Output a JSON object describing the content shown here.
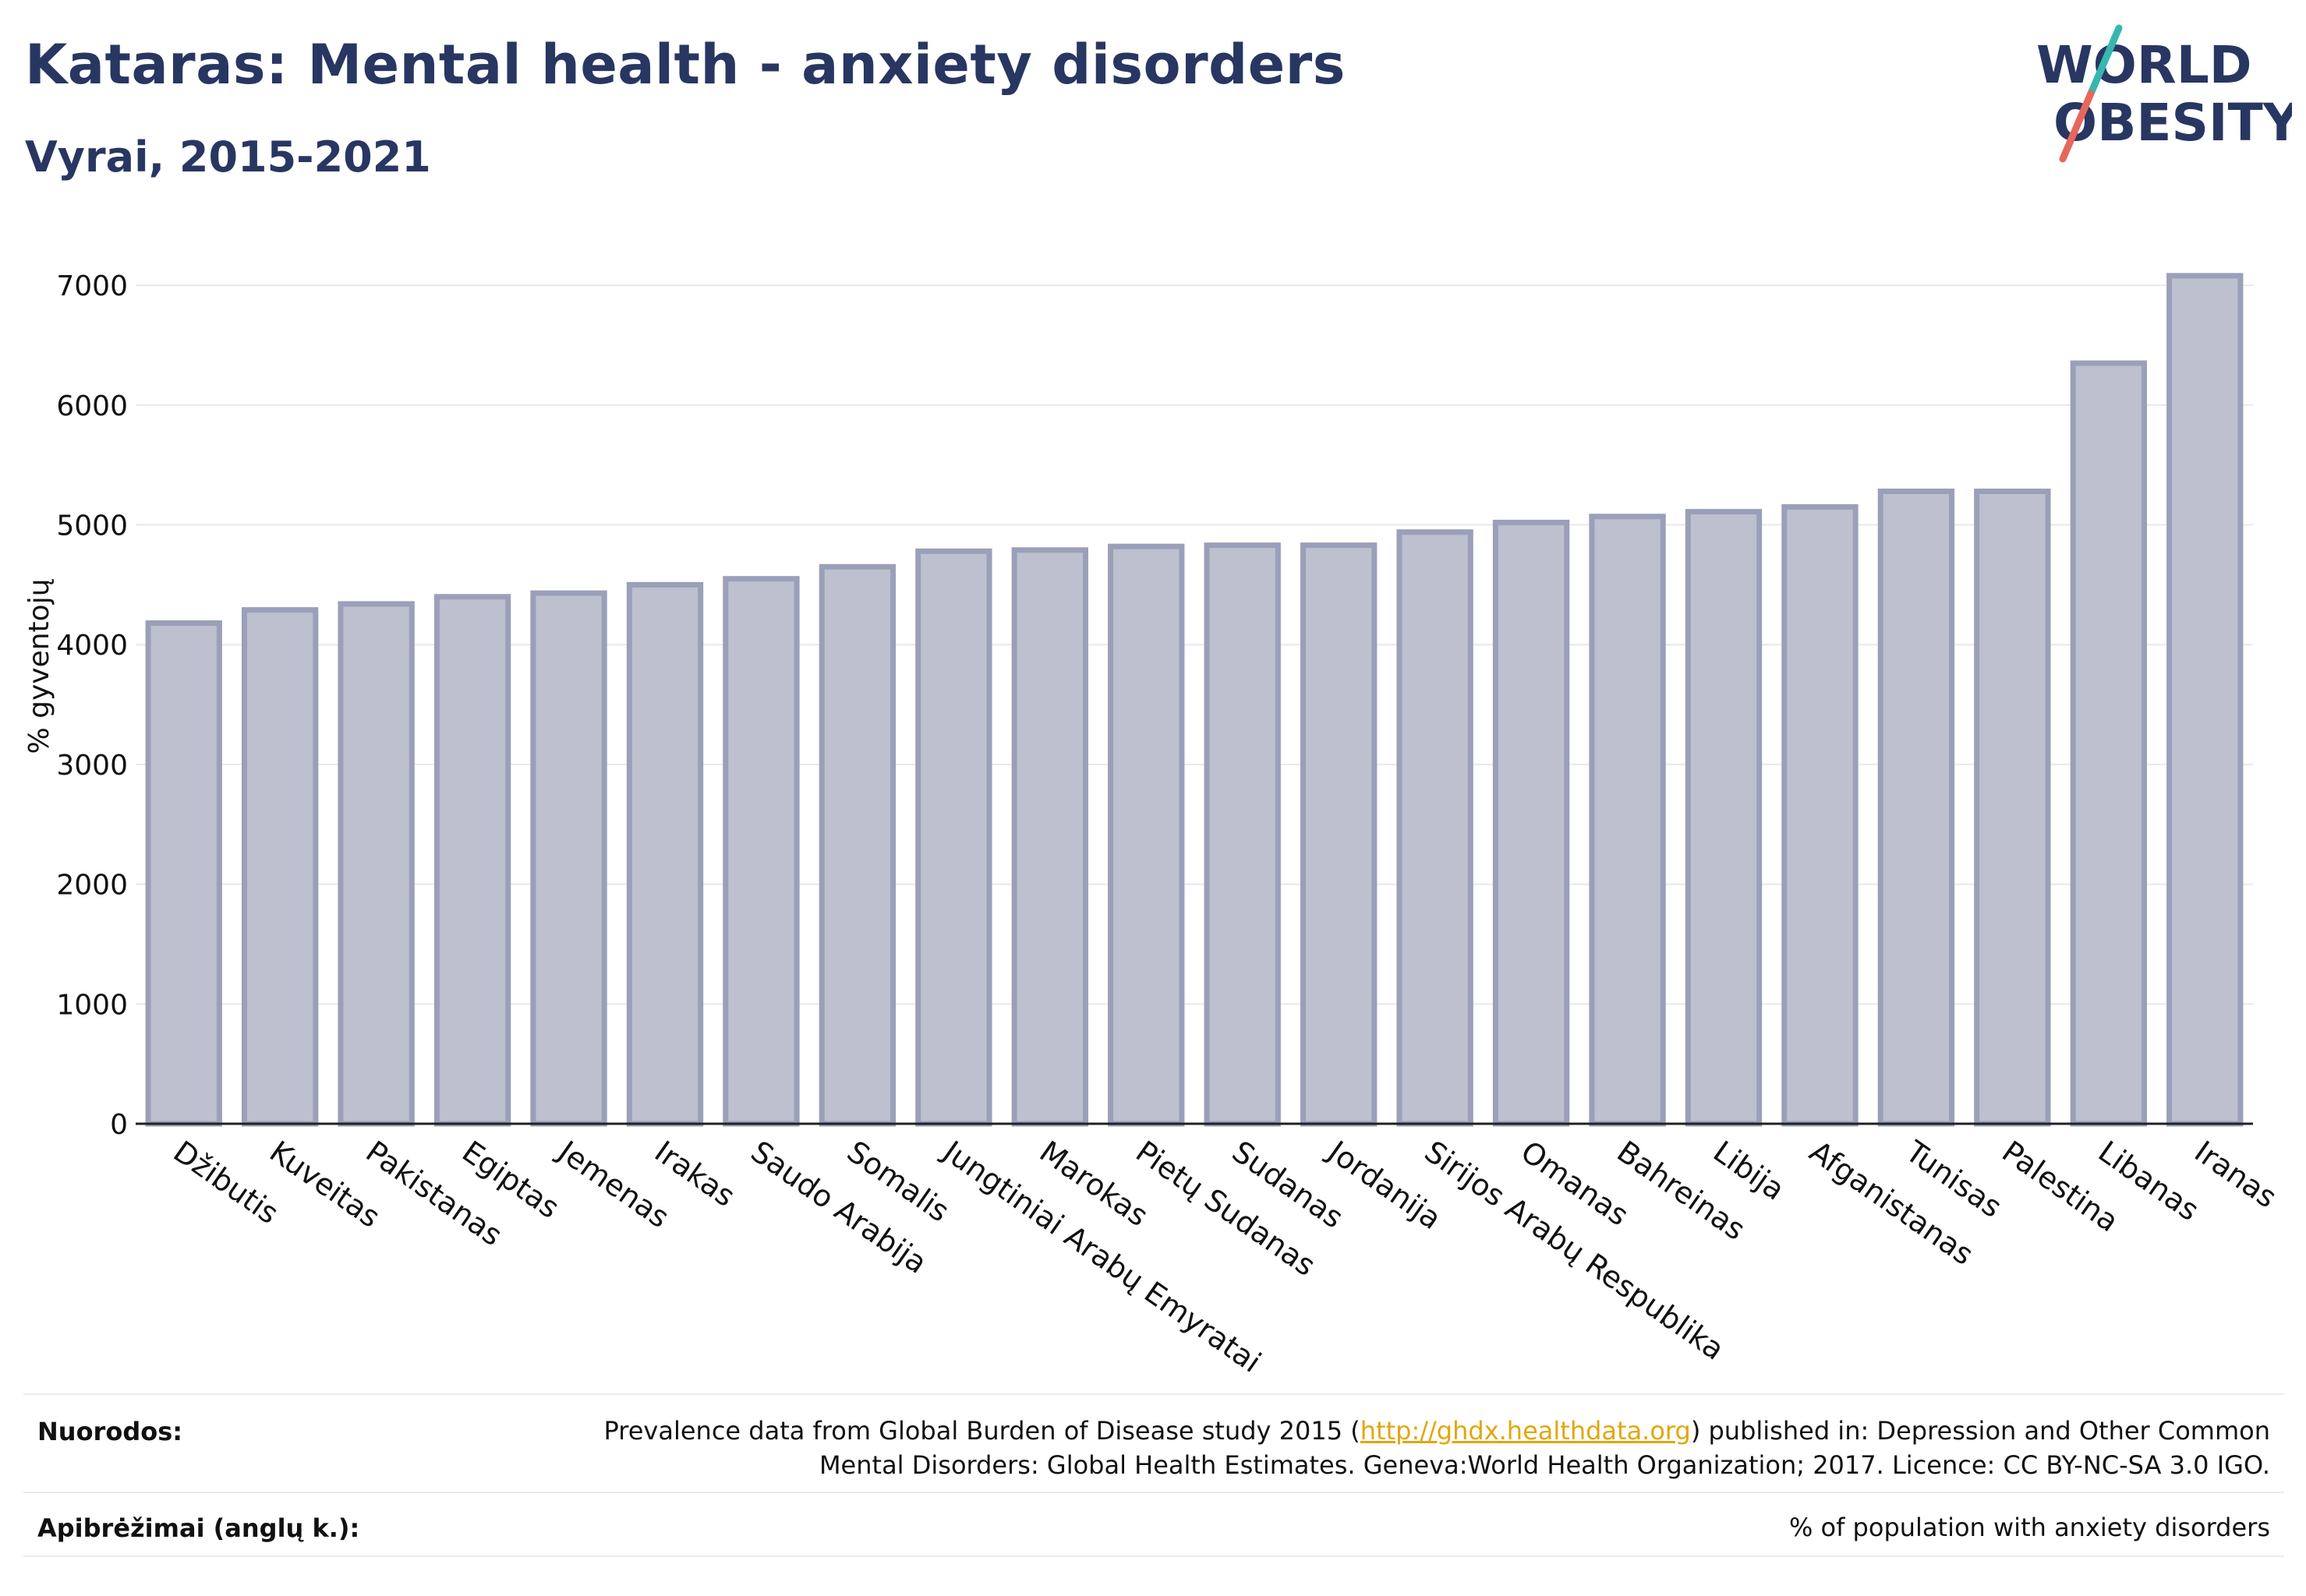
{
  "header": {
    "title": "Kataras: Mental health - anxiety disorders",
    "subtitle": "Vyrai, 2015-2021"
  },
  "logo": {
    "line1": "WORLD",
    "line2": "OBESITY",
    "icon": "world-obesity-logo",
    "colors": {
      "text": "#283662",
      "slash_top": "#35b7b0",
      "slash_bottom": "#e7675c"
    }
  },
  "colors": {
    "bar_fill": "#bcc0cf",
    "bar_stroke": "#9aa0b8",
    "title": "#283662",
    "grid": "#e8e8ee",
    "link": "#e0a70e"
  },
  "chart_data": {
    "type": "bar",
    "title": "",
    "xlabel": "",
    "ylabel": "% gyventojų",
    "ylim": [
      0,
      7300
    ],
    "yticks": [
      0,
      1000,
      2000,
      3000,
      4000,
      5000,
      6000,
      7000
    ],
    "grid": true,
    "categories": [
      "Džibutis",
      "Kuveitas",
      "Pakistanas",
      "Egiptas",
      "Jemenas",
      "Irakas",
      "Saudo Arabija",
      "Somalis",
      "Jungtiniai Arabų Emyratai",
      "Marokas",
      "Pietų Sudanas",
      "Sudanas",
      "Jordanija",
      "Sirijos Arabų Respublika",
      "Omanas",
      "Bahreinas",
      "Libija",
      "Afganistanas",
      "Tunisas",
      "Palestina",
      "Libanas",
      "Iranas"
    ],
    "values": [
      4180,
      4290,
      4340,
      4400,
      4430,
      4500,
      4550,
      4650,
      4780,
      4790,
      4820,
      4830,
      4830,
      4940,
      5020,
      5070,
      5110,
      5150,
      5280,
      5280,
      6350,
      7080
    ]
  },
  "footer": {
    "references_label": "Nuorodos:",
    "references_text_1": "Prevalence data from Global Burden of Disease study 2015 (",
    "references_link": "http://ghdx.healthdata.org",
    "references_text_2": ") published in: Depression and Other Common",
    "references_text_3": "Mental Disorders: Global Health Estimates. Geneva:World Health Organization; 2017. Licence: CC BY-NC-SA 3.0 IGO.",
    "definitions_label": "Apibrėžimai (anglų k.):",
    "definitions_text": "% of population with anxiety disorders"
  }
}
